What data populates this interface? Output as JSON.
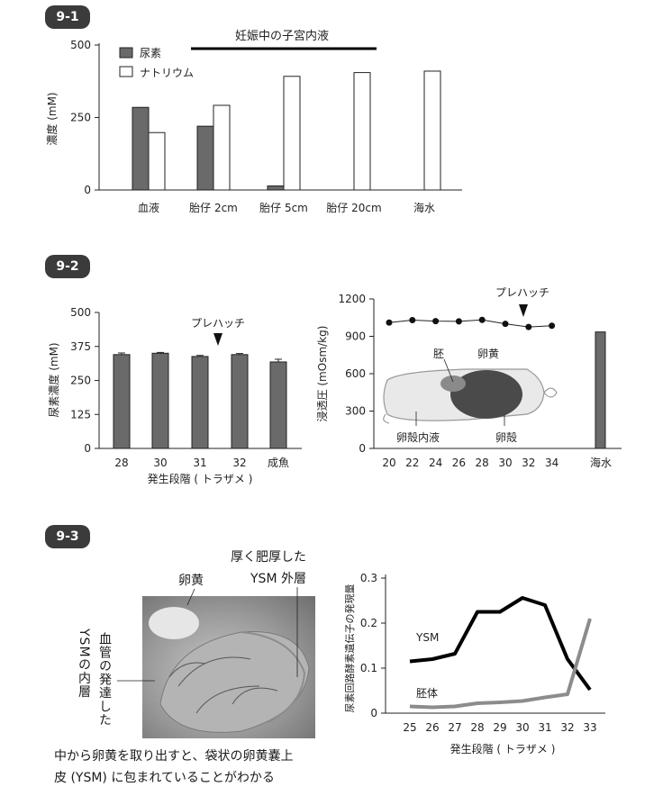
{
  "sections": {
    "s1": {
      "badge": "9-1"
    },
    "s2": {
      "badge": "9-2"
    },
    "s3": {
      "badge": "9-3"
    }
  },
  "chart_data": [
    {
      "id": "9-1",
      "type": "bar",
      "title": "妊娠中の子宮内液",
      "ylabel": "濃度 (mM)",
      "ylim": [
        0,
        500
      ],
      "yticks": [
        "0",
        "250",
        "500"
      ],
      "ytick_values": [
        0,
        250,
        500
      ],
      "categories": [
        "血液",
        "胎仔 2cm",
        "胎仔 5cm",
        "胎仔 20cm",
        "海水"
      ],
      "series": [
        {
          "name": "尿素",
          "color": "#6a6a6a",
          "values": [
            285,
            220,
            14,
            0,
            0
          ]
        },
        {
          "name": "ナトリウム",
          "color": "#ffffff",
          "values": [
            198,
            292,
            392,
            405,
            410
          ]
        }
      ],
      "legend_position": "top-left"
    },
    {
      "id": "9-2-left",
      "type": "bar",
      "ylabel": "尿素濃度 (mM)",
      "xlabel": "発生段階 ( トラザメ )",
      "ylim": [
        0,
        500
      ],
      "yticks": [
        "0",
        "125",
        "250",
        "375",
        "500"
      ],
      "ytick_values": [
        0,
        125,
        250,
        375,
        500
      ],
      "categories": [
        "28",
        "30",
        "31",
        "32",
        "成魚"
      ],
      "values": [
        345,
        350,
        338,
        345,
        318
      ],
      "errors": [
        6,
        3,
        4,
        4,
        10
      ],
      "color": "#6a6a6a",
      "annotation": "プレハッチ",
      "annotation_at": "31"
    },
    {
      "id": "9-2-right",
      "type": "line",
      "ylabel": "浸透圧 (mOsm/kg)",
      "ylim": [
        0,
        1200
      ],
      "yticks": [
        "0",
        "300",
        "600",
        "900",
        "1200"
      ],
      "ytick_values": [
        0,
        300,
        600,
        900,
        1200
      ],
      "x": [
        20,
        22,
        24,
        26,
        28,
        30,
        32,
        34
      ],
      "xtick_labels": [
        "20",
        "22",
        "24",
        "26",
        "28",
        "30",
        "32",
        "34"
      ],
      "line_points": [
        {
          "x": 20,
          "y": 1010
        },
        {
          "x": 22,
          "y": 1030
        },
        {
          "x": 24,
          "y": 1022
        },
        {
          "x": 26,
          "y": 1020
        },
        {
          "x": 28,
          "y": 1032
        },
        {
          "x": 30,
          "y": 1000
        },
        {
          "x": 32,
          "y": 975
        },
        {
          "x": 34,
          "y": 985
        }
      ],
      "extra_bar": {
        "label": "海水",
        "value": 935
      },
      "annotation": "プレハッチ",
      "annotation_at": 31,
      "inset_labels": [
        "胚",
        "卵黄",
        "卵殻内液",
        "卵殻"
      ]
    },
    {
      "id": "9-3",
      "type": "line",
      "ylabel": "尿素回路酵素遺伝子の発現量",
      "xlabel": "発生段階 ( トラザメ )",
      "ylim": [
        0,
        0.3
      ],
      "yticks": [
        "0",
        "0.1",
        "0.2",
        "0.3"
      ],
      "ytick_values": [
        0,
        0.1,
        0.2,
        0.3
      ],
      "x": [
        25,
        26,
        27,
        28,
        29,
        30,
        31,
        32,
        33
      ],
      "series": [
        {
          "name": "YSM",
          "color": "#000000",
          "values": [
            0.115,
            0.12,
            0.132,
            0.225,
            0.225,
            0.256,
            0.24,
            0.12,
            0.052
          ]
        },
        {
          "name": "胚体",
          "color": "#8c8c8c",
          "values": [
            0.015,
            0.013,
            0.015,
            0.022,
            0.024,
            0.027,
            0.035,
            0.042,
            0.21
          ]
        }
      ]
    }
  ],
  "photo3": {
    "label_yolk": "卵黄",
    "label_outer_line1": "厚く肥厚した",
    "label_outer_line2": "YSM 外層",
    "label_vessels": "血管の発達した",
    "label_inner": "YSMの内層",
    "caption_line1": "中から卵黄を取り出すと、袋状の卵黄嚢上",
    "caption_line2": "皮 (YSM) に包まれていることがわかる"
  }
}
